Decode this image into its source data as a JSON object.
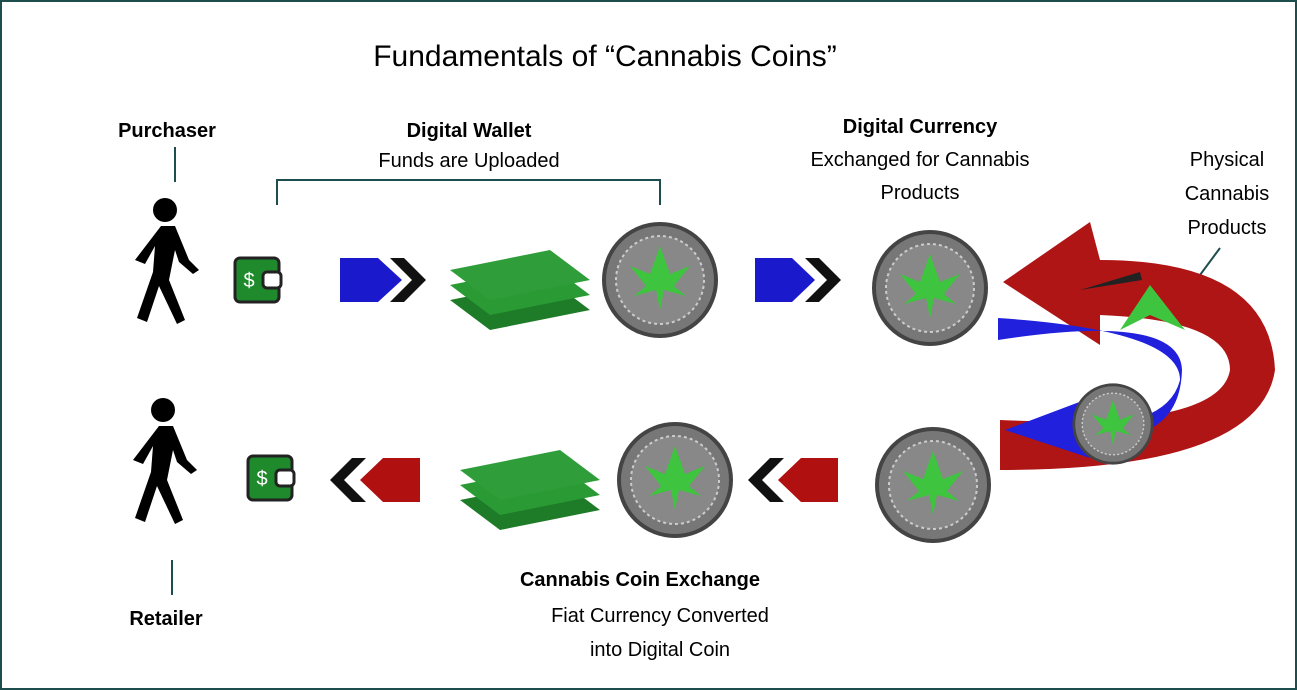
{
  "title": "Fundamentals of “Cannabis Coins”",
  "purchaser": "Purchaser",
  "retailer": "Retailer",
  "wallet": {
    "title": "Digital Wallet",
    "subtitle": "Funds are Uploaded"
  },
  "currency": {
    "title": "Digital Currency",
    "subtitle_1": "Exchanged for Cannabis",
    "subtitle_2": "Products"
  },
  "physical": {
    "line_1": "Physical",
    "line_2": "Cannabis",
    "line_3": "Products"
  },
  "exchange": {
    "title": "Cannabis Coin Exchange",
    "subtitle_1": "Fiat Currency Converted",
    "subtitle_2": "into Digital Coin"
  }
}
